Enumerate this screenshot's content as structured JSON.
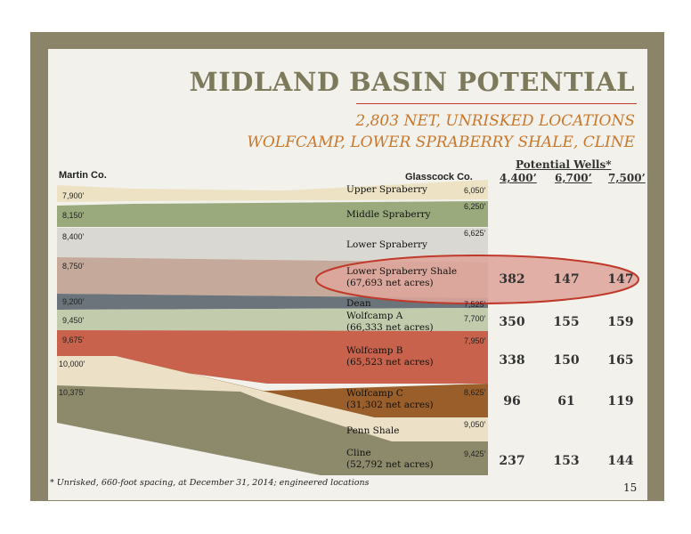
{
  "title": "MIDLAND BASIN POTENTIAL",
  "subtitle_line1": "2,803 NET, UNRISKED LOCATIONS",
  "subtitle_line2": "WOLFCAMP, LOWER SPRABERRY SHALE, CLINE",
  "left_header": "Martin Co.",
  "right_header": "Glasscock Co.",
  "wells": {
    "title": "Potential Wells*",
    "columns": [
      "4,400’",
      "6,700’",
      "7,500’"
    ]
  },
  "left_depths": [
    "7,900’",
    "8,150’",
    "8,400’",
    "8,750’",
    "9,200’",
    "9,450’",
    "9,675’",
    "10,000’",
    "10,375’"
  ],
  "right_depths": [
    "6,050’",
    "6,250’",
    "6,625’",
    "7,525’",
    "7,700’",
    "7,950’",
    "8,625’",
    "9,050’",
    "9,425’"
  ],
  "formations": [
    {
      "name": "Upper Spraberry",
      "acres": ""
    },
    {
      "name": "Middle Spraberry",
      "acres": ""
    },
    {
      "name": "Lower Spraberry",
      "acres": ""
    },
    {
      "name": "Lower Spraberry Shale",
      "acres": "(67,693 net acres)"
    },
    {
      "name": "Dean",
      "acres": ""
    },
    {
      "name": "Wolfcamp A",
      "acres": "(66,333 net acres)"
    },
    {
      "name": "Wolfcamp B",
      "acres": "(65,523 net acres)"
    },
    {
      "name": "Wolfcamp C",
      "acres": "(31,302 net acres)"
    },
    {
      "name": "Penn Shale",
      "acres": ""
    },
    {
      "name": "Cline",
      "acres": "(52,792 net acres)"
    }
  ],
  "well_rows": [
    {
      "formation": "Lower Spraberry Shale",
      "values": [
        "382",
        "147",
        "147"
      ]
    },
    {
      "formation": "Wolfcamp A",
      "values": [
        "350",
        "155",
        "159"
      ]
    },
    {
      "formation": "Wolfcamp B",
      "values": [
        "338",
        "150",
        "165"
      ]
    },
    {
      "formation": "Wolfcamp C",
      "values": [
        "96",
        "61",
        "119"
      ]
    },
    {
      "formation": "Cline",
      "values": [
        "237",
        "153",
        "144"
      ]
    }
  ],
  "colors": {
    "frame": "#8b8468",
    "title": "#7d7a5c",
    "subtitle": "#c8772b",
    "highlight_fill": "#dea59b",
    "highlight_stroke": "#c0392b"
  },
  "footnote": "* Unrisked, 660-foot spacing, at  December 31, 2014; engineered locations",
  "page_number": "15"
}
